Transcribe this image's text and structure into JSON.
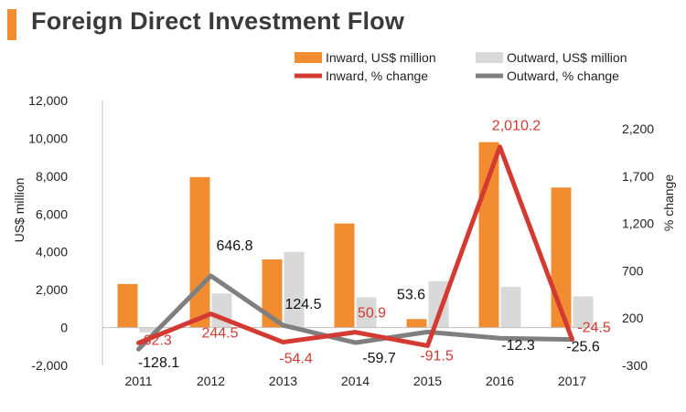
{
  "title": "Foreign Direct Investment Flow",
  "colors": {
    "inward_bar": "#F28C30",
    "outward_bar": "#D9D9D9",
    "inward_line": "#D33A32",
    "outward_line": "#7F7F7F",
    "accent": "#F28C30"
  },
  "chart_data": {
    "type": "bar",
    "title": "Foreign Direct Investment Flow",
    "categories": [
      "2011",
      "2012",
      "2013",
      "2014",
      "2015",
      "2016",
      "2017"
    ],
    "ylabel": "US$ million",
    "y2label": "% change",
    "ylim": [
      -2000,
      12000
    ],
    "y2lim": [
      -300,
      2500
    ],
    "y_ticks": [
      "-2,000",
      "0",
      "2,000",
      "4,000",
      "6,000",
      "8,000",
      "10,000",
      "12,000"
    ],
    "y_tick_values": [
      -2000,
      0,
      2000,
      4000,
      6000,
      8000,
      10000,
      12000
    ],
    "y2_ticks": [
      "-300",
      "200",
      "700",
      "1,200",
      "1,700",
      "2,200"
    ],
    "y2_tick_values": [
      -300,
      200,
      700,
      1200,
      1700,
      2200
    ],
    "series": [
      {
        "name": "Inward, US$ million",
        "kind": "bar",
        "axis": "left",
        "values": [
          2300,
          7950,
          3600,
          5500,
          450,
          9800,
          7400
        ]
      },
      {
        "name": "Outward, US$ million",
        "kind": "bar",
        "axis": "left",
        "values": [
          -250,
          1800,
          4000,
          1600,
          2450,
          2150,
          1650
        ]
      },
      {
        "name": "Inward, % change",
        "kind": "line",
        "axis": "right",
        "values": [
          -62.3,
          244.5,
          -54.4,
          50.9,
          -91.5,
          2010.2,
          -24.5
        ],
        "labels": [
          "-62.3",
          "244.5",
          "-54.4",
          "50.9",
          "-91.5",
          "2,010.2",
          "-24.5"
        ]
      },
      {
        "name": "Outward, % change",
        "kind": "line",
        "axis": "right",
        "values": [
          -128.1,
          646.8,
          124.5,
          -59.7,
          53.6,
          -12.3,
          -25.6
        ],
        "labels": [
          "-128.1",
          "646.8",
          "124.5",
          "-59.7",
          "53.6",
          "-12.3",
          "-25.6"
        ]
      }
    ],
    "legend": {
      "position": "top-right",
      "items": [
        "Inward, US$ million",
        "Outward, US$ million",
        "Inward, % change",
        "Outward, % change"
      ]
    }
  }
}
